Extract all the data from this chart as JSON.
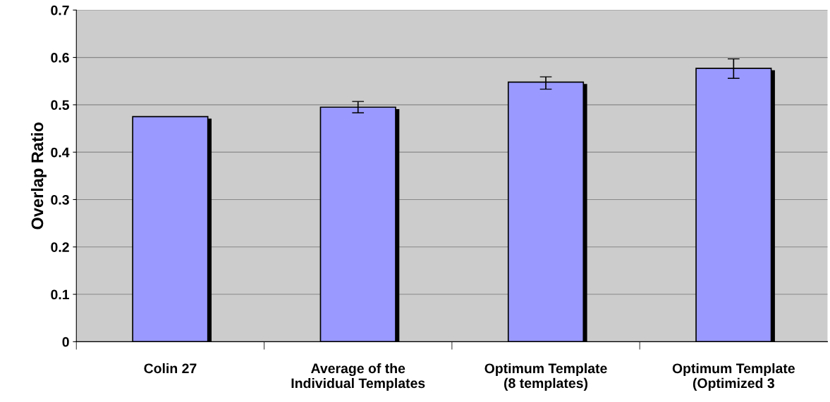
{
  "chart_data": {
    "type": "bar",
    "ylabel": "Overlap Ratio",
    "categories": [
      "Colin 27",
      "Average of the\nIndividual Templates",
      "Optimum Template\n(8 templates)",
      "Optimum Template\n(Optimized 3"
    ],
    "values": [
      0.475,
      0.495,
      0.548,
      0.577
    ],
    "errors": [
      null,
      [
        0.483,
        0.507
      ],
      [
        0.533,
        0.559
      ],
      [
        0.556,
        0.597
      ]
    ],
    "color": "#9999ff",
    "ylim": [
      0,
      0.7
    ],
    "yticks": [
      0,
      0.1,
      0.2,
      0.3,
      0.4,
      0.5,
      0.6,
      0.7
    ],
    "grid": "y"
  }
}
